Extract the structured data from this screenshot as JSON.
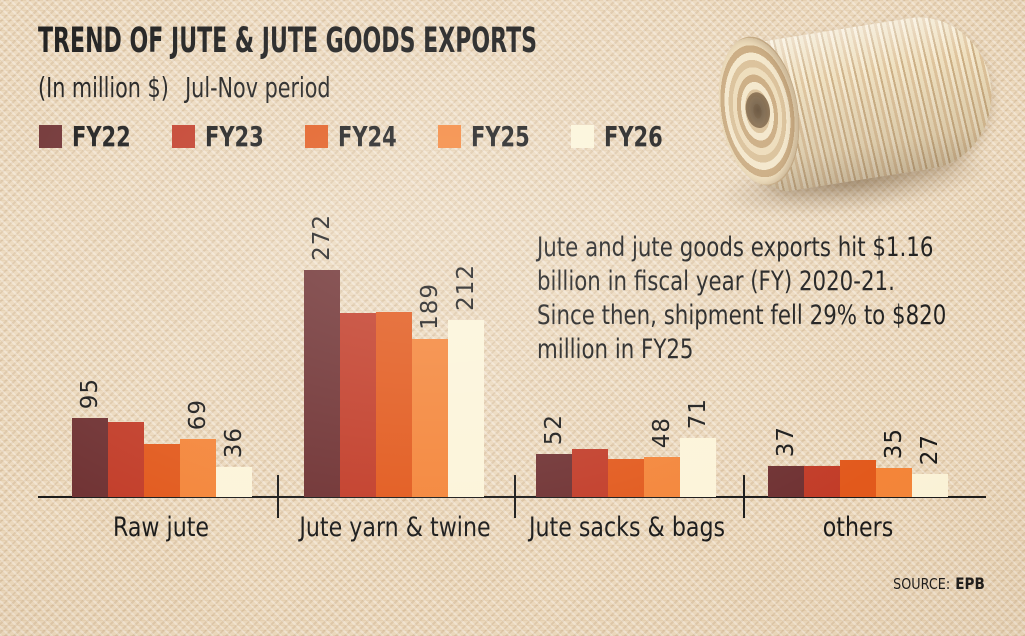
{
  "title": "TREND OF JUTE & JUTE GOODS EXPORTS",
  "subtitle": {
    "unit_note": "(In million $)",
    "period_note": "Jul-Nov period"
  },
  "annotation": "Jute and jute goods exports hit $1.16\nbillion in fiscal year (FY) 2020-21.\nSince then, shipment fell 29% to $820\nmillion in FY25",
  "source": {
    "label": "SOURCE:",
    "value": "EPB"
  },
  "photo": {
    "description": "spool of jute twine lying on burlap fabric"
  },
  "colors": {
    "background": "#ecd9bd",
    "text": "#1a1a1a",
    "axis": "#1a1a1a"
  },
  "chart_data": {
    "type": "bar",
    "title": "TREND OF JUTE & JUTE GOODS EXPORTS",
    "unit": "million $",
    "period": "Jul-Nov",
    "categories": [
      "Raw jute",
      "Jute yarn & twine",
      "Jute sacks & bags",
      "others"
    ],
    "series": [
      {
        "name": "FY22",
        "color": "#6f3132",
        "values": [
          95,
          272,
          52,
          37
        ]
      },
      {
        "name": "FY23",
        "color": "#c23c28",
        "values": [
          90,
          220,
          57,
          37
        ],
        "values_estimated": true
      },
      {
        "name": "FY24",
        "color": "#e2591c",
        "values": [
          64,
          222,
          46,
          44
        ],
        "values_estimated": true
      },
      {
        "name": "FY25",
        "color": "#f48539",
        "values": [
          69,
          189,
          48,
          35
        ]
      },
      {
        "name": "FY26",
        "color": "#fcf4d9",
        "values": [
          36,
          212,
          71,
          27
        ]
      }
    ],
    "value_label_series": [
      "FY22",
      "FY25",
      "FY26"
    ],
    "value_labels_rotated": true,
    "ylim": [
      0,
      290
    ],
    "grid": false,
    "legend_position": "top-left"
  }
}
